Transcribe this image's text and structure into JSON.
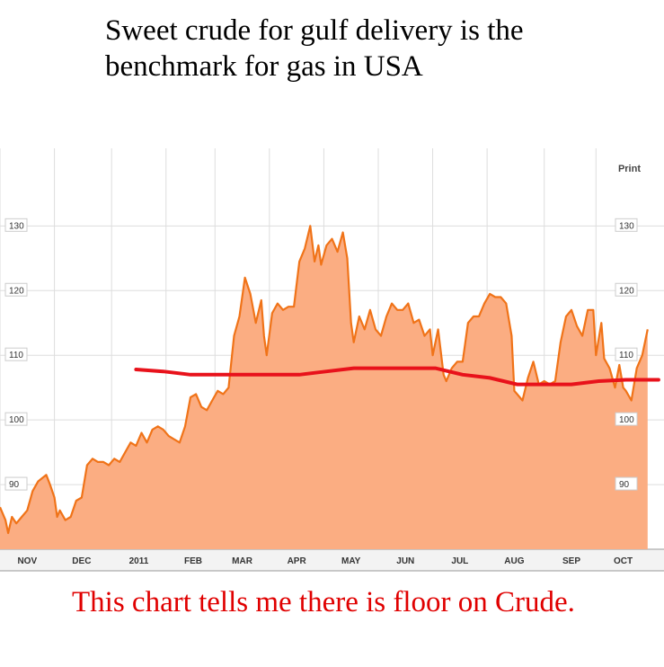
{
  "title": "Sweet crude for gulf delivery is the benchmark for gas in USA",
  "annotation": "This chart tells me there is floor on Crude.",
  "print_label": "Print",
  "colors": {
    "price_line": "#f07318",
    "area_fill": "#fbad82",
    "floor_line": "#e8121b",
    "grid": "#dddddd",
    "annotation_text": "#e00000"
  },
  "chart_data": {
    "type": "area",
    "title": "",
    "xlabel": "",
    "ylabel": "",
    "ylim": [
      80,
      142
    ],
    "yticks": [
      90,
      100,
      110,
      120,
      130
    ],
    "y_axis_labels_both_sides": true,
    "grid": true,
    "x_axis_labels": [
      {
        "label": "NOV",
        "t": 0.5
      },
      {
        "label": "DEC",
        "t": 1.5
      },
      {
        "label": "2011",
        "t": 2.55
      },
      {
        "label": "FEB",
        "t": 3.55
      },
      {
        "label": "MAR",
        "t": 4.45
      },
      {
        "label": "APR",
        "t": 5.45
      },
      {
        "label": "MAY",
        "t": 6.45
      },
      {
        "label": "JUN",
        "t": 7.45
      },
      {
        "label": "JUL",
        "t": 8.45
      },
      {
        "label": "AUG",
        "t": 9.45
      },
      {
        "label": "SEP",
        "t": 10.5
      },
      {
        "label": "OCT",
        "t": 11.45
      }
    ],
    "x_range": [
      0,
      12.2
    ],
    "series": [
      {
        "kind": "area",
        "points": [
          [
            0.0,
            86.5
          ],
          [
            0.1,
            84.5
          ],
          [
            0.15,
            82.5
          ],
          [
            0.22,
            85
          ],
          [
            0.3,
            84
          ],
          [
            0.4,
            85
          ],
          [
            0.5,
            86
          ],
          [
            0.6,
            89
          ],
          [
            0.7,
            90.5
          ],
          [
            0.85,
            91.5
          ],
          [
            0.92,
            90
          ],
          [
            1.0,
            88
          ],
          [
            1.05,
            85
          ],
          [
            1.1,
            86
          ],
          [
            1.2,
            84.5
          ],
          [
            1.3,
            85
          ],
          [
            1.4,
            87.5
          ],
          [
            1.5,
            88
          ],
          [
            1.6,
            93
          ],
          [
            1.7,
            94
          ],
          [
            1.8,
            93.5
          ],
          [
            1.9,
            93.5
          ],
          [
            2.0,
            93
          ],
          [
            2.1,
            94
          ],
          [
            2.2,
            93.5
          ],
          [
            2.3,
            95
          ],
          [
            2.4,
            96.5
          ],
          [
            2.5,
            96
          ],
          [
            2.6,
            98
          ],
          [
            2.7,
            96.5
          ],
          [
            2.8,
            98.5
          ],
          [
            2.9,
            99
          ],
          [
            3.0,
            98.5
          ],
          [
            3.1,
            97.5
          ],
          [
            3.2,
            97
          ],
          [
            3.3,
            96.5
          ],
          [
            3.4,
            99
          ],
          [
            3.5,
            103.5
          ],
          [
            3.6,
            104
          ],
          [
            3.7,
            102
          ],
          [
            3.8,
            101.5
          ],
          [
            3.9,
            103
          ],
          [
            4.0,
            104.5
          ],
          [
            4.1,
            104
          ],
          [
            4.2,
            105
          ],
          [
            4.3,
            113
          ],
          [
            4.4,
            116
          ],
          [
            4.5,
            122
          ],
          [
            4.6,
            119.5
          ],
          [
            4.7,
            115
          ],
          [
            4.8,
            118.5
          ],
          [
            4.85,
            113
          ],
          [
            4.9,
            110
          ],
          [
            5.0,
            116.5
          ],
          [
            5.1,
            118
          ],
          [
            5.2,
            117
          ],
          [
            5.3,
            117.5
          ],
          [
            5.4,
            117.5
          ],
          [
            5.5,
            124.5
          ],
          [
            5.6,
            126.5
          ],
          [
            5.7,
            130
          ],
          [
            5.78,
            124.5
          ],
          [
            5.85,
            127
          ],
          [
            5.9,
            124
          ],
          [
            6.0,
            127
          ],
          [
            6.1,
            128
          ],
          [
            6.2,
            126
          ],
          [
            6.3,
            129
          ],
          [
            6.38,
            125
          ],
          [
            6.45,
            115
          ],
          [
            6.5,
            112
          ],
          [
            6.6,
            116
          ],
          [
            6.7,
            114
          ],
          [
            6.8,
            117
          ],
          [
            6.9,
            114
          ],
          [
            7.0,
            113
          ],
          [
            7.1,
            116
          ],
          [
            7.2,
            118
          ],
          [
            7.3,
            117
          ],
          [
            7.4,
            117
          ],
          [
            7.5,
            118
          ],
          [
            7.6,
            115
          ],
          [
            7.7,
            115.5
          ],
          [
            7.8,
            113
          ],
          [
            7.9,
            114
          ],
          [
            7.95,
            110
          ],
          [
            8.05,
            114
          ],
          [
            8.15,
            107
          ],
          [
            8.2,
            106
          ],
          [
            8.3,
            108
          ],
          [
            8.4,
            109
          ],
          [
            8.5,
            109
          ],
          [
            8.6,
            115
          ],
          [
            8.7,
            116
          ],
          [
            8.8,
            116
          ],
          [
            8.9,
            118
          ],
          [
            9.0,
            119.5
          ],
          [
            9.1,
            119
          ],
          [
            9.2,
            119
          ],
          [
            9.3,
            118
          ],
          [
            9.4,
            113
          ],
          [
            9.45,
            104.5
          ],
          [
            9.5,
            104
          ],
          [
            9.6,
            103
          ],
          [
            9.7,
            106.5
          ],
          [
            9.8,
            109
          ],
          [
            9.9,
            105.5
          ],
          [
            10.0,
            106
          ],
          [
            10.1,
            105.5
          ],
          [
            10.2,
            106
          ],
          [
            10.3,
            112
          ],
          [
            10.4,
            116
          ],
          [
            10.5,
            117
          ],
          [
            10.6,
            114.5
          ],
          [
            10.7,
            113
          ],
          [
            10.8,
            117
          ],
          [
            10.9,
            117
          ],
          [
            10.95,
            110
          ],
          [
            11.05,
            115
          ],
          [
            11.1,
            109.5
          ],
          [
            11.2,
            108
          ],
          [
            11.3,
            105
          ],
          [
            11.38,
            108.5
          ],
          [
            11.45,
            105
          ],
          [
            11.5,
            104.5
          ],
          [
            11.6,
            103
          ],
          [
            11.7,
            108
          ],
          [
            11.8,
            110
          ],
          [
            11.9,
            114
          ]
        ]
      },
      {
        "kind": "line",
        "points": [
          [
            2.5,
            107.8
          ],
          [
            3.0,
            107.5
          ],
          [
            3.5,
            107
          ],
          [
            4.5,
            107
          ],
          [
            5.5,
            107
          ],
          [
            6.0,
            107.5
          ],
          [
            6.5,
            108
          ],
          [
            7.5,
            108
          ],
          [
            8.0,
            108
          ],
          [
            8.5,
            107
          ],
          [
            9.0,
            106.5
          ],
          [
            9.5,
            105.5
          ],
          [
            10.0,
            105.5
          ],
          [
            10.5,
            105.5
          ],
          [
            11.0,
            106
          ],
          [
            11.5,
            106.2
          ],
          [
            12.1,
            106.2
          ]
        ]
      }
    ]
  }
}
